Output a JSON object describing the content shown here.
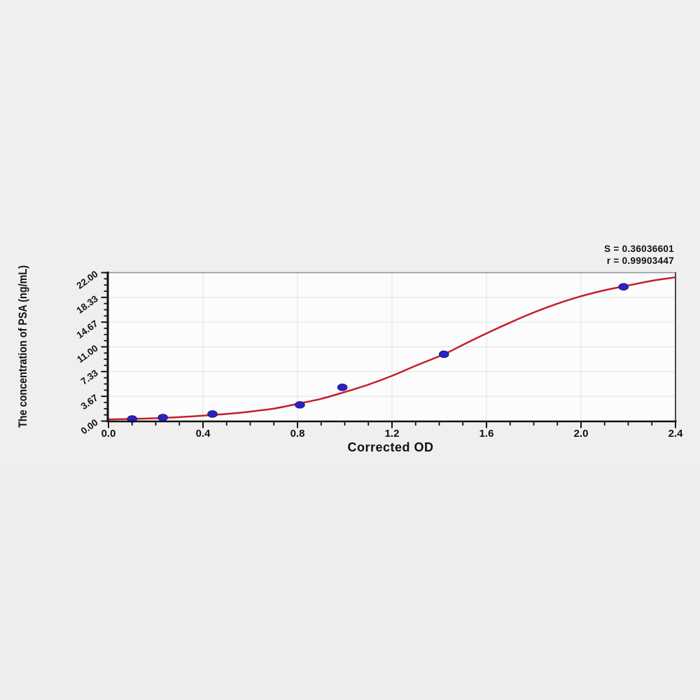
{
  "page": {
    "background": "#f0eff0"
  },
  "chart_data": {
    "type": "scatter",
    "title": "",
    "xlabel": "Corrected OD",
    "ylabel": "The concentration of PSA (ng/mL)",
    "annotation": {
      "line1": "S = 0.36036601",
      "line2": "r = 0.99903447"
    },
    "xlim": [
      0,
      2.4
    ],
    "ylim": [
      0,
      22
    ],
    "x_tick_values": [
      0,
      0.4,
      0.8,
      1.2,
      1.6,
      2.0,
      2.4
    ],
    "x_tick_labels": [
      "0.0",
      "0.4",
      "0.8",
      "1.2",
      "1.6",
      "2.0",
      "2.4"
    ],
    "x_minor_step": 0.1,
    "y_tick_values": [
      0,
      3.6667,
      7.3333,
      11,
      14.6667,
      18.3333,
      22
    ],
    "y_tick_labels": [
      "0.00",
      "3.67",
      "7.33",
      "11.00",
      "14.67",
      "18.33",
      "22.00"
    ],
    "y_minor_step": 0.9167,
    "grid": true,
    "legend_position": "none",
    "series": [
      {
        "name": "standard-points",
        "type": "scatter",
        "points": [
          {
            "od": 0.1,
            "conc": 0.31
          },
          {
            "od": 0.23,
            "conc": 0.52
          },
          {
            "od": 0.44,
            "conc": 1.04
          },
          {
            "od": 0.81,
            "conc": 2.4
          },
          {
            "od": 0.99,
            "conc": 5.0
          },
          {
            "od": 1.42,
            "conc": 9.9
          },
          {
            "od": 2.18,
            "conc": 19.9
          }
        ]
      },
      {
        "name": "fitted-curve",
        "type": "line",
        "points": [
          [
            0.0,
            0.25
          ],
          [
            0.1,
            0.32
          ],
          [
            0.2,
            0.42
          ],
          [
            0.3,
            0.58
          ],
          [
            0.4,
            0.8
          ],
          [
            0.5,
            1.05
          ],
          [
            0.6,
            1.4
          ],
          [
            0.7,
            1.85
          ],
          [
            0.8,
            2.55
          ],
          [
            0.9,
            3.3
          ],
          [
            1.0,
            4.3
          ],
          [
            1.1,
            5.4
          ],
          [
            1.2,
            6.7
          ],
          [
            1.3,
            8.2
          ],
          [
            1.42,
            9.9
          ],
          [
            1.5,
            11.3
          ],
          [
            1.6,
            13.0
          ],
          [
            1.7,
            14.6
          ],
          [
            1.8,
            16.1
          ],
          [
            1.9,
            17.4
          ],
          [
            2.0,
            18.5
          ],
          [
            2.1,
            19.4
          ],
          [
            2.2,
            20.1
          ],
          [
            2.3,
            20.8
          ],
          [
            2.4,
            21.3
          ]
        ]
      }
    ],
    "colors": {
      "curve": "#c41f27",
      "point_fill": "#2b24bd",
      "point_stroke": "#1a1694",
      "grid": "#e4e4e4",
      "axis": "#111111",
      "frame_top": "#909090",
      "frame_right": "#4a4a4a",
      "plot_bg": "#fcfcfc",
      "text": "#111111"
    }
  }
}
